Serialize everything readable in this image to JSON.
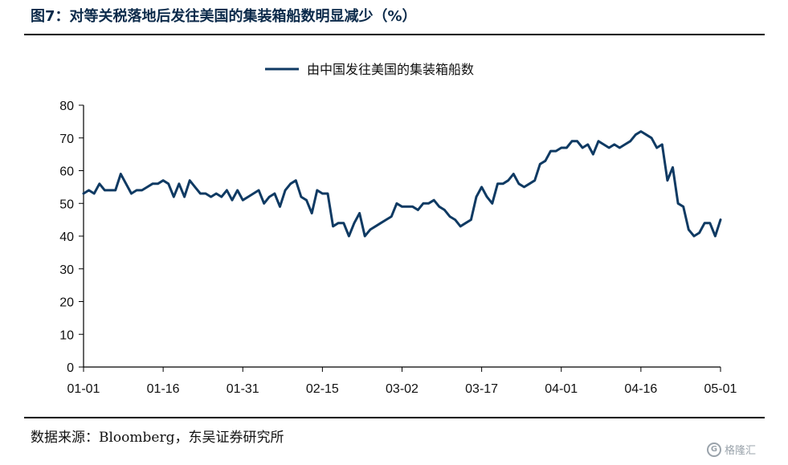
{
  "page": {
    "title": "图7：对等关税落地后发往美国的集装箱船数明显减少（%）",
    "source": "数据来源：Bloomberg，东吴证券研究所",
    "watermark": "格隆汇",
    "watermark_logo": "G"
  },
  "chart_data": {
    "type": "line",
    "title": "",
    "xlabel": "",
    "ylabel": "",
    "ylim": [
      0,
      80
    ],
    "yticks": [
      0,
      10,
      20,
      30,
      40,
      50,
      60,
      70,
      80
    ],
    "xtick_labels": [
      "01-01",
      "01-16",
      "01-31",
      "02-15",
      "03-02",
      "03-17",
      "04-01",
      "04-16",
      "05-01"
    ],
    "xrange_days": [
      0,
      120
    ],
    "grid": false,
    "legend_position": "top-center",
    "color": "#0f3a63",
    "series": [
      {
        "name": "由中国发往美国的集装箱船数",
        "x": [
          0,
          1,
          2,
          3,
          4,
          5,
          6,
          7,
          8,
          9,
          10,
          11,
          12,
          13,
          14,
          15,
          16,
          17,
          18,
          19,
          20,
          21,
          22,
          23,
          24,
          25,
          26,
          27,
          28,
          29,
          30,
          31,
          32,
          33,
          34,
          35,
          36,
          37,
          38,
          39,
          40,
          41,
          42,
          43,
          44,
          45,
          46,
          47,
          48,
          49,
          50,
          51,
          52,
          53,
          54,
          55,
          56,
          57,
          58,
          59,
          60,
          61,
          62,
          63,
          64,
          65,
          66,
          67,
          68,
          69,
          70,
          71,
          72,
          73,
          74,
          75,
          76,
          77,
          78,
          79,
          80,
          81,
          82,
          83,
          84,
          85,
          86,
          87,
          88,
          89,
          90,
          91,
          92,
          93,
          94,
          95,
          96,
          97,
          98,
          99,
          100,
          101,
          102,
          103,
          104,
          105,
          106,
          107,
          108,
          109,
          110,
          111,
          112,
          113,
          114,
          115,
          116,
          117,
          118,
          119,
          120
        ],
        "y": [
          53,
          54,
          53,
          56,
          54,
          54,
          54,
          59,
          56,
          53,
          54,
          54,
          55,
          56,
          56,
          57,
          56,
          52,
          56,
          52,
          57,
          55,
          53,
          53,
          52,
          53,
          52,
          54,
          51,
          54,
          51,
          52,
          53,
          54,
          50,
          52,
          53,
          49,
          54,
          56,
          57,
          52,
          51,
          47,
          54,
          53,
          53,
          43,
          44,
          44,
          40,
          44,
          47,
          40,
          42,
          43,
          44,
          45,
          46,
          50,
          49,
          49,
          49,
          48,
          50,
          50,
          51,
          49,
          48,
          46,
          45,
          43,
          44,
          45,
          52,
          55,
          52,
          50,
          56,
          56,
          57,
          59,
          56,
          55,
          56,
          57,
          62,
          63,
          66,
          66,
          67,
          67,
          69,
          69,
          67,
          68,
          65,
          69,
          68,
          67,
          68,
          67,
          68,
          69,
          71,
          72,
          71,
          70,
          67,
          68,
          57,
          61,
          50,
          49,
          42,
          40,
          41,
          44,
          44,
          40,
          45
        ]
      }
    ]
  }
}
